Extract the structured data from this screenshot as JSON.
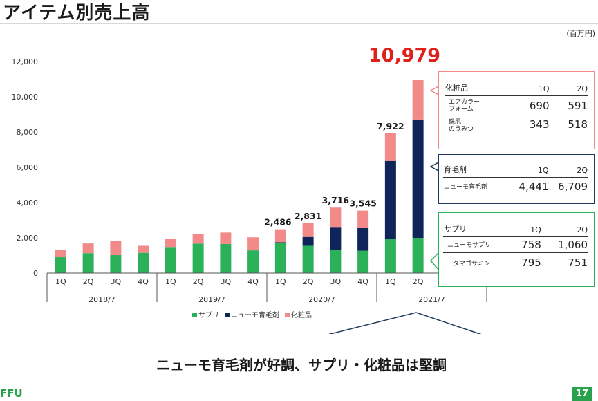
{
  "page_title": "アイテム別売上高",
  "unit_label": "(百万円)",
  "highlight_total": "10,979",
  "callout_text": "ニューモ育毛剤が好調、サプリ・化粧品は堅調",
  "logo_text": "FFU",
  "page_number": "17",
  "colors": {
    "supplement": "#2bb15a",
    "hair": "#0f2458",
    "cosmetics": "#f28a8a",
    "accent_red": "#e0201b"
  },
  "chart_data": {
    "type": "bar",
    "stacked": true,
    "categories": [
      "1Q",
      "2Q",
      "3Q",
      "4Q",
      "1Q",
      "2Q",
      "3Q",
      "4Q",
      "1Q",
      "2Q",
      "3Q",
      "4Q",
      "1Q",
      "2Q"
    ],
    "groups": [
      {
        "label": "2018/7",
        "span": 4
      },
      {
        "label": "2019/7",
        "span": 4
      },
      {
        "label": "2020/7",
        "span": 4
      },
      {
        "label": "2021/7",
        "span": 2
      }
    ],
    "series": [
      {
        "name": "サプリ",
        "values": [
          900,
          1130,
          1020,
          1150,
          1480,
          1670,
          1650,
          1290,
          1700,
          1550,
          1300,
          1270,
          1920,
          2000
        ]
      },
      {
        "name": "ニューモ育毛剤",
        "values": [
          0,
          0,
          0,
          0,
          0,
          0,
          0,
          0,
          50,
          500,
          1280,
          1280,
          4441,
          6709
        ]
      },
      {
        "name": "化粧品",
        "values": [
          400,
          550,
          800,
          400,
          450,
          530,
          650,
          740,
          736,
          781,
          1136,
          995,
          1561,
          2270
        ]
      }
    ],
    "total_labels": [
      null,
      null,
      null,
      null,
      null,
      null,
      null,
      null,
      "2,486",
      "2,831",
      "3,716",
      "3,545",
      "7,922",
      null
    ],
    "ylim": [
      0,
      12000
    ],
    "yticks": [
      0,
      2000,
      4000,
      6000,
      8000,
      10000,
      12000
    ],
    "ytick_labels": [
      "0",
      "2,000",
      "4,000",
      "6,000",
      "8,000",
      "10,000",
      "12,000"
    ],
    "legend": [
      "サプリ",
      "ニューモ育毛剤",
      "化粧品"
    ]
  },
  "breakdown_boxes": {
    "cosmetics": {
      "title": "化粧品",
      "col1": "1Q",
      "col2": "2Q",
      "rows": [
        {
          "label1": "エアカラー",
          "label2": "フォーム",
          "q1": "690",
          "q2": "591"
        },
        {
          "label1": "珠肌",
          "label2": "のうみつ",
          "q1": "343",
          "q2": "518"
        }
      ]
    },
    "hair": {
      "title": "育毛剤",
      "col1": "1Q",
      "col2": "2Q",
      "rows": [
        {
          "label1": "ニューモ育毛剤",
          "q1": "4,441",
          "q2": "6,709"
        }
      ]
    },
    "supplement": {
      "title": "サプリ",
      "col1": "1Q",
      "col2": "2Q",
      "rows": [
        {
          "label1": "ニューモサプリ",
          "q1": "758",
          "q2": "1,060"
        },
        {
          "label1": "タマゴサミン",
          "q1": "795",
          "q2": "751"
        }
      ]
    }
  }
}
